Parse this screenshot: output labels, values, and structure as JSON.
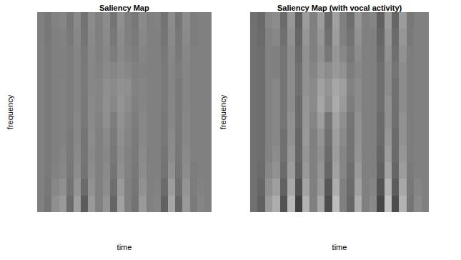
{
  "chart_data": [
    {
      "type": "heatmap",
      "title": "Saliency Map",
      "x_label": "time",
      "y_label": "frequency",
      "color": "gray",
      "tick_labels": false,
      "zlim": [
        0,
        1
      ],
      "z": [
        [
          0.5,
          0.46,
          0.56,
          0.6,
          0.42,
          0.62,
          0.36,
          0.6,
          0.5,
          0.58,
          0.4,
          0.63,
          0.5,
          0.45,
          0.6,
          0.5,
          0.52,
          0.38,
          0.65,
          0.4,
          0.6,
          0.48,
          0.52,
          0.5
        ],
        [
          0.5,
          0.47,
          0.53,
          0.56,
          0.45,
          0.58,
          0.42,
          0.57,
          0.5,
          0.55,
          0.43,
          0.6,
          0.5,
          0.46,
          0.57,
          0.5,
          0.51,
          0.42,
          0.61,
          0.44,
          0.58,
          0.49,
          0.51,
          0.5
        ],
        [
          0.5,
          0.48,
          0.51,
          0.53,
          0.47,
          0.55,
          0.45,
          0.55,
          0.5,
          0.54,
          0.46,
          0.56,
          0.51,
          0.47,
          0.55,
          0.5,
          0.5,
          0.45,
          0.57,
          0.46,
          0.55,
          0.49,
          0.5,
          0.5
        ],
        [
          0.5,
          0.48,
          0.5,
          0.52,
          0.48,
          0.54,
          0.46,
          0.54,
          0.5,
          0.53,
          0.47,
          0.55,
          0.51,
          0.48,
          0.54,
          0.5,
          0.5,
          0.46,
          0.55,
          0.47,
          0.54,
          0.5,
          0.5,
          0.5
        ],
        [
          0.5,
          0.48,
          0.5,
          0.51,
          0.48,
          0.53,
          0.46,
          0.55,
          0.5,
          0.54,
          0.48,
          0.56,
          0.52,
          0.48,
          0.53,
          0.5,
          0.5,
          0.47,
          0.54,
          0.47,
          0.53,
          0.5,
          0.5,
          0.5
        ],
        [
          0.5,
          0.48,
          0.5,
          0.51,
          0.49,
          0.53,
          0.47,
          0.54,
          0.51,
          0.56,
          0.49,
          0.57,
          0.53,
          0.49,
          0.53,
          0.5,
          0.5,
          0.47,
          0.53,
          0.48,
          0.53,
          0.5,
          0.5,
          0.5
        ],
        [
          0.5,
          0.48,
          0.5,
          0.51,
          0.49,
          0.52,
          0.47,
          0.54,
          0.52,
          0.57,
          0.53,
          0.58,
          0.55,
          0.5,
          0.52,
          0.5,
          0.5,
          0.48,
          0.53,
          0.48,
          0.52,
          0.5,
          0.5,
          0.5
        ],
        [
          0.5,
          0.48,
          0.5,
          0.51,
          0.49,
          0.52,
          0.48,
          0.53,
          0.52,
          0.56,
          0.54,
          0.57,
          0.56,
          0.51,
          0.52,
          0.5,
          0.5,
          0.48,
          0.52,
          0.48,
          0.52,
          0.5,
          0.5,
          0.5
        ],
        [
          0.5,
          0.48,
          0.5,
          0.5,
          0.49,
          0.52,
          0.48,
          0.53,
          0.51,
          0.54,
          0.52,
          0.55,
          0.53,
          0.5,
          0.51,
          0.5,
          0.5,
          0.48,
          0.52,
          0.49,
          0.52,
          0.5,
          0.5,
          0.5
        ],
        [
          0.5,
          0.48,
          0.5,
          0.5,
          0.49,
          0.52,
          0.47,
          0.53,
          0.5,
          0.53,
          0.49,
          0.54,
          0.51,
          0.49,
          0.52,
          0.5,
          0.5,
          0.47,
          0.53,
          0.48,
          0.53,
          0.5,
          0.5,
          0.5
        ],
        [
          0.5,
          0.47,
          0.5,
          0.51,
          0.48,
          0.53,
          0.46,
          0.54,
          0.5,
          0.54,
          0.47,
          0.55,
          0.5,
          0.48,
          0.53,
          0.5,
          0.5,
          0.46,
          0.54,
          0.47,
          0.54,
          0.49,
          0.5,
          0.5
        ],
        [
          0.5,
          0.47,
          0.51,
          0.52,
          0.47,
          0.54,
          0.45,
          0.55,
          0.5,
          0.55,
          0.46,
          0.56,
          0.5,
          0.47,
          0.54,
          0.5,
          0.51,
          0.45,
          0.55,
          0.46,
          0.55,
          0.49,
          0.5,
          0.5
        ]
      ]
    },
    {
      "type": "heatmap",
      "title": "Saliency Map (with vocal activity)",
      "x_label": "time",
      "y_label": "frequency",
      "color": "gray",
      "tick_labels": false,
      "zlim": [
        0,
        1
      ],
      "z": [
        [
          0.44,
          0.38,
          0.6,
          0.68,
          0.32,
          0.72,
          0.25,
          0.7,
          0.5,
          0.66,
          0.3,
          0.74,
          0.5,
          0.4,
          0.68,
          0.5,
          0.54,
          0.28,
          0.76,
          0.3,
          0.7,
          0.46,
          0.54,
          0.5
        ],
        [
          0.44,
          0.4,
          0.56,
          0.62,
          0.38,
          0.66,
          0.32,
          0.64,
          0.5,
          0.6,
          0.34,
          0.68,
          0.5,
          0.42,
          0.63,
          0.5,
          0.52,
          0.33,
          0.7,
          0.36,
          0.66,
          0.47,
          0.52,
          0.5
        ],
        [
          0.44,
          0.42,
          0.53,
          0.57,
          0.42,
          0.61,
          0.38,
          0.6,
          0.5,
          0.58,
          0.4,
          0.63,
          0.52,
          0.43,
          0.6,
          0.5,
          0.5,
          0.38,
          0.64,
          0.4,
          0.61,
          0.48,
          0.5,
          0.5
        ],
        [
          0.44,
          0.43,
          0.51,
          0.55,
          0.44,
          0.59,
          0.4,
          0.58,
          0.5,
          0.56,
          0.42,
          0.61,
          0.52,
          0.45,
          0.58,
          0.5,
          0.5,
          0.4,
          0.61,
          0.42,
          0.59,
          0.49,
          0.5,
          0.5
        ],
        [
          0.44,
          0.43,
          0.51,
          0.53,
          0.44,
          0.57,
          0.4,
          0.6,
          0.5,
          0.58,
          0.44,
          0.62,
          0.54,
          0.45,
          0.57,
          0.5,
          0.5,
          0.42,
          0.59,
          0.42,
          0.57,
          0.49,
          0.5,
          0.5
        ],
        [
          0.44,
          0.43,
          0.51,
          0.53,
          0.46,
          0.57,
          0.42,
          0.59,
          0.52,
          0.62,
          0.46,
          0.64,
          0.56,
          0.46,
          0.57,
          0.5,
          0.5,
          0.42,
          0.57,
          0.44,
          0.57,
          0.49,
          0.5,
          0.5
        ],
        [
          0.44,
          0.43,
          0.51,
          0.53,
          0.46,
          0.55,
          0.42,
          0.59,
          0.54,
          0.65,
          0.56,
          0.67,
          0.6,
          0.49,
          0.55,
          0.5,
          0.5,
          0.44,
          0.57,
          0.44,
          0.55,
          0.49,
          0.5,
          0.5
        ],
        [
          0.44,
          0.43,
          0.51,
          0.53,
          0.46,
          0.55,
          0.44,
          0.57,
          0.54,
          0.63,
          0.58,
          0.65,
          0.62,
          0.51,
          0.55,
          0.5,
          0.5,
          0.44,
          0.55,
          0.44,
          0.55,
          0.49,
          0.5,
          0.5
        ],
        [
          0.44,
          0.43,
          0.51,
          0.5,
          0.46,
          0.55,
          0.44,
          0.57,
          0.52,
          0.59,
          0.55,
          0.6,
          0.57,
          0.49,
          0.53,
          0.5,
          0.5,
          0.44,
          0.55,
          0.46,
          0.55,
          0.49,
          0.5,
          0.5
        ],
        [
          0.44,
          0.43,
          0.51,
          0.5,
          0.46,
          0.55,
          0.42,
          0.57,
          0.5,
          0.57,
          0.47,
          0.59,
          0.53,
          0.47,
          0.55,
          0.5,
          0.5,
          0.42,
          0.57,
          0.44,
          0.57,
          0.49,
          0.5,
          0.5
        ],
        [
          0.44,
          0.42,
          0.51,
          0.53,
          0.44,
          0.57,
          0.4,
          0.59,
          0.5,
          0.59,
          0.44,
          0.61,
          0.5,
          0.45,
          0.57,
          0.5,
          0.5,
          0.4,
          0.59,
          0.42,
          0.59,
          0.48,
          0.5,
          0.5
        ],
        [
          0.44,
          0.41,
          0.53,
          0.55,
          0.42,
          0.59,
          0.38,
          0.61,
          0.5,
          0.61,
          0.42,
          0.63,
          0.5,
          0.43,
          0.59,
          0.5,
          0.52,
          0.38,
          0.61,
          0.4,
          0.61,
          0.47,
          0.5,
          0.5
        ]
      ]
    }
  ]
}
